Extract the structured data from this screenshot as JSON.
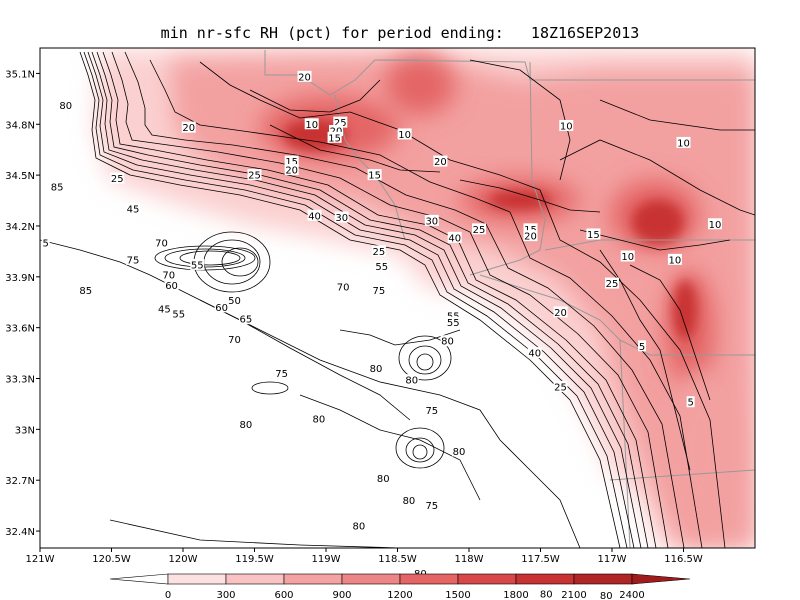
{
  "title": "min nr-sfc RH (pct) for period ending:   18Z16SEP2013",
  "x_ticks": [
    "121W",
    "120.5W",
    "120W",
    "119.5W",
    "119W",
    "118.5W",
    "118W",
    "117.5W",
    "117W",
    "116.5W"
  ],
  "y_ticks": [
    "35.1N",
    "34.8N",
    "34.5N",
    "34.2N",
    "33.9N",
    "33.6N",
    "33.3N",
    "33N",
    "32.7N",
    "32.4N"
  ],
  "x_range": [
    121.0,
    116.0
  ],
  "y_range": [
    32.3,
    35.25
  ],
  "colorbar": {
    "labels": [
      "0",
      "300",
      "600",
      "900",
      "1200",
      "1500",
      "1800",
      "2100",
      "2400"
    ],
    "colors": [
      "#ffffff",
      "#fde0e0",
      "#f9c3c3",
      "#f4a3a3",
      "#ec8585",
      "#e46565",
      "#d84848",
      "#c83232",
      "#b02525",
      "#a01b1b"
    ]
  },
  "colors": {
    "shade_light": "#fbd0d0",
    "shade_mid": "#f3a0a0",
    "shade_strong": "#e46565",
    "shade_core": "#c83030",
    "contour": "#000000",
    "boundary": "#999999",
    "frame": "#000000"
  },
  "contour_labels": [
    {
      "text": "20",
      "lon": 119.15,
      "lat": 35.08
    },
    {
      "text": "80",
      "lon": 120.82,
      "lat": 34.91
    },
    {
      "text": "20",
      "lon": 119.96,
      "lat": 34.78
    },
    {
      "text": "10",
      "lon": 119.1,
      "lat": 34.8
    },
    {
      "text": "25",
      "lon": 118.9,
      "lat": 34.81
    },
    {
      "text": "20",
      "lon": 118.93,
      "lat": 34.76
    },
    {
      "text": "15",
      "lon": 118.94,
      "lat": 34.72
    },
    {
      "text": "10",
      "lon": 118.45,
      "lat": 34.74
    },
    {
      "text": "10",
      "lon": 117.32,
      "lat": 34.79
    },
    {
      "text": "10",
      "lon": 116.5,
      "lat": 34.69
    },
    {
      "text": "15",
      "lon": 119.24,
      "lat": 34.58
    },
    {
      "text": "20",
      "lon": 119.24,
      "lat": 34.53
    },
    {
      "text": "25",
      "lon": 119.5,
      "lat": 34.5
    },
    {
      "text": "20",
      "lon": 118.2,
      "lat": 34.58
    },
    {
      "text": "15",
      "lon": 118.66,
      "lat": 34.5
    },
    {
      "text": "25",
      "lon": 120.46,
      "lat": 34.48
    },
    {
      "text": "85",
      "lon": 120.88,
      "lat": 34.43
    },
    {
      "text": "45",
      "lon": 120.35,
      "lat": 34.3
    },
    {
      "text": "40",
      "lon": 119.08,
      "lat": 34.26
    },
    {
      "text": "30",
      "lon": 118.89,
      "lat": 34.25
    },
    {
      "text": "30",
      "lon": 118.26,
      "lat": 34.23
    },
    {
      "text": "25",
      "lon": 117.93,
      "lat": 34.18
    },
    {
      "text": "15",
      "lon": 117.57,
      "lat": 34.18
    },
    {
      "text": "20",
      "lon": 117.57,
      "lat": 34.14
    },
    {
      "text": "40",
      "lon": 118.1,
      "lat": 34.13
    },
    {
      "text": "15",
      "lon": 117.13,
      "lat": 34.15
    },
    {
      "text": "10",
      "lon": 116.28,
      "lat": 34.21
    },
    {
      "text": "5",
      "lon": 120.96,
      "lat": 34.1
    },
    {
      "text": "70",
      "lon": 120.15,
      "lat": 34.1
    },
    {
      "text": "75",
      "lon": 120.35,
      "lat": 34.0
    },
    {
      "text": "55",
      "lon": 119.9,
      "lat": 33.97
    },
    {
      "text": "25",
      "lon": 118.63,
      "lat": 34.05
    },
    {
      "text": "55",
      "lon": 118.61,
      "lat": 33.96
    },
    {
      "text": "10",
      "lon": 116.89,
      "lat": 34.02
    },
    {
      "text": "10",
      "lon": 116.56,
      "lat": 34.0
    },
    {
      "text": "85",
      "lon": 120.68,
      "lat": 33.82
    },
    {
      "text": "70",
      "lon": 120.1,
      "lat": 33.91
    },
    {
      "text": "60",
      "lon": 120.08,
      "lat": 33.85
    },
    {
      "text": "70",
      "lon": 118.88,
      "lat": 33.84
    },
    {
      "text": "75",
      "lon": 118.63,
      "lat": 33.82
    },
    {
      "text": "25",
      "lon": 117.0,
      "lat": 33.86
    },
    {
      "text": "50",
      "lon": 119.64,
      "lat": 33.76
    },
    {
      "text": "60",
      "lon": 119.73,
      "lat": 33.72
    },
    {
      "text": "45",
      "lon": 120.13,
      "lat": 33.71
    },
    {
      "text": "55",
      "lon": 120.03,
      "lat": 33.68
    },
    {
      "text": "65",
      "lon": 119.56,
      "lat": 33.65
    },
    {
      "text": "20",
      "lon": 117.36,
      "lat": 33.69
    },
    {
      "text": "55",
      "lon": 118.11,
      "lat": 33.67
    },
    {
      "text": "55",
      "lon": 118.11,
      "lat": 33.63
    },
    {
      "text": "70",
      "lon": 119.64,
      "lat": 33.53
    },
    {
      "text": "80",
      "lon": 118.15,
      "lat": 33.52
    },
    {
      "text": "5",
      "lon": 116.79,
      "lat": 33.49
    },
    {
      "text": "40",
      "lon": 117.54,
      "lat": 33.45
    },
    {
      "text": "80",
      "lon": 118.65,
      "lat": 33.36
    },
    {
      "text": "75",
      "lon": 119.31,
      "lat": 33.33
    },
    {
      "text": "80",
      "lon": 118.4,
      "lat": 33.29
    },
    {
      "text": "25",
      "lon": 117.36,
      "lat": 33.25
    },
    {
      "text": "5",
      "lon": 116.45,
      "lat": 33.16
    },
    {
      "text": "75",
      "lon": 118.26,
      "lat": 33.11
    },
    {
      "text": "80",
      "lon": 119.05,
      "lat": 33.06
    },
    {
      "text": "80",
      "lon": 119.56,
      "lat": 33.03
    },
    {
      "text": "80",
      "lon": 118.07,
      "lat": 32.87
    },
    {
      "text": "80",
      "lon": 118.6,
      "lat": 32.71
    },
    {
      "text": "80",
      "lon": 118.42,
      "lat": 32.58
    },
    {
      "text": "75",
      "lon": 118.26,
      "lat": 32.55
    },
    {
      "text": "80",
      "lon": 118.77,
      "lat": 32.43
    },
    {
      "text": "80",
      "lon": 118.34,
      "lat": 32.15
    },
    {
      "text": "80",
      "lon": 117.46,
      "lat": 32.03
    },
    {
      "text": "80",
      "lon": 117.04,
      "lat": 32.02
    }
  ]
}
